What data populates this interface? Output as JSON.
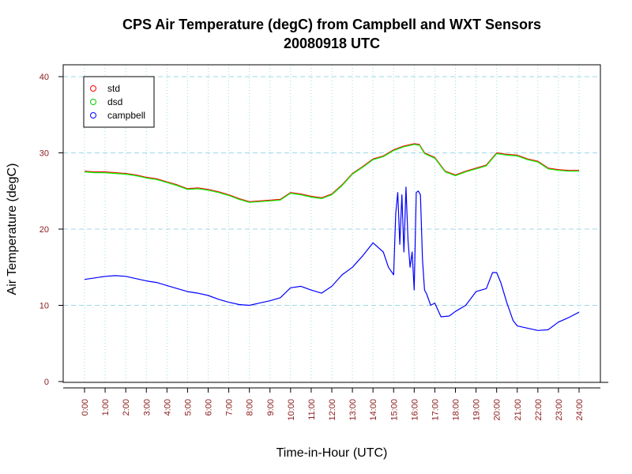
{
  "chart_data": {
    "type": "line",
    "title": "CPS Air Temperature (degC) from Campbell and WXT Sensors",
    "subtitle": "20080918  UTC",
    "xlabel": "Time-in-Hour (UTC)",
    "ylabel": "Air Temperature (degC)",
    "xlim": [
      0,
      24
    ],
    "ylim": [
      0,
      40
    ],
    "yticks": [
      0,
      10,
      20,
      30,
      40
    ],
    "xtick_labels": [
      "0:00",
      "1:00",
      "2:00",
      "3:00",
      "4:00",
      "5:00",
      "6:00",
      "7:00",
      "8:00",
      "9:00",
      "10:00",
      "11:00",
      "12:00",
      "13:00",
      "14:00",
      "15:00",
      "16:00",
      "17:00",
      "18:00",
      "19:00",
      "20:00",
      "21:00",
      "22:00",
      "23:00",
      "24:00"
    ],
    "grid": true,
    "legend": {
      "position": "top-left",
      "entries": [
        "std",
        "dsd",
        "campbell"
      ]
    },
    "series": [
      {
        "name": "std",
        "color": "#ff0000",
        "x": [
          0,
          0.5,
          1,
          1.5,
          2,
          2.5,
          3,
          3.5,
          4,
          4.5,
          5,
          5.5,
          6,
          6.5,
          7,
          7.5,
          8,
          8.5,
          9,
          9.5,
          10,
          10.5,
          11,
          11.5,
          12,
          12.5,
          13,
          13.5,
          14,
          14.5,
          15,
          15.5,
          16,
          16.25,
          16.5,
          16.75,
          17,
          17.5,
          18,
          18.5,
          19,
          19.5,
          20,
          20.5,
          21,
          21.5,
          22,
          22.5,
          23,
          23.5,
          24
        ],
        "values": [
          27.6,
          27.5,
          27.5,
          27.4,
          27.3,
          27.1,
          26.8,
          26.6,
          26.2,
          25.8,
          25.3,
          25.4,
          25.2,
          24.9,
          24.5,
          24.0,
          23.6,
          23.7,
          23.8,
          23.9,
          24.8,
          24.6,
          24.3,
          24.1,
          24.6,
          25.8,
          27.3,
          28.2,
          29.2,
          29.6,
          30.4,
          30.9,
          31.2,
          31.1,
          30.0,
          29.7,
          29.4,
          27.6,
          27.1,
          27.6,
          28.0,
          28.4,
          30.0,
          29.8,
          29.7,
          29.2,
          28.9,
          28.0,
          27.8,
          27.7,
          27.7
        ]
      },
      {
        "name": "dsd",
        "color": "#00ff00",
        "x": [
          0,
          0.5,
          1,
          1.5,
          2,
          2.5,
          3,
          3.5,
          4,
          4.5,
          5,
          5.5,
          6,
          6.5,
          7,
          7.5,
          8,
          8.5,
          9,
          9.5,
          10,
          10.5,
          11,
          11.5,
          12,
          12.5,
          13,
          13.5,
          14,
          14.5,
          15,
          15.5,
          16,
          16.25,
          16.5,
          16.75,
          17,
          17.5,
          18,
          18.5,
          19,
          19.5,
          20,
          20.5,
          21,
          21.5,
          22,
          22.5,
          23,
          23.5,
          24
        ],
        "values": [
          27.5,
          27.4,
          27.4,
          27.3,
          27.2,
          27.0,
          26.7,
          26.5,
          26.1,
          25.7,
          25.2,
          25.3,
          25.1,
          24.8,
          24.4,
          23.9,
          23.5,
          23.6,
          23.7,
          23.8,
          24.7,
          24.5,
          24.2,
          24.0,
          24.5,
          25.7,
          27.2,
          28.1,
          29.1,
          29.5,
          30.3,
          30.8,
          31.1,
          31.0,
          29.9,
          29.6,
          29.3,
          27.5,
          27.0,
          27.5,
          27.9,
          28.3,
          29.9,
          29.7,
          29.6,
          29.1,
          28.8,
          27.9,
          27.7,
          27.6,
          27.6
        ]
      },
      {
        "name": "campbell",
        "color": "#0000ff",
        "x": [
          0,
          0.5,
          1,
          1.5,
          2,
          2.5,
          3,
          3.5,
          4,
          4.5,
          5,
          5.5,
          6,
          6.5,
          7,
          7.5,
          8,
          8.5,
          9,
          9.5,
          10,
          10.5,
          11,
          11.5,
          12,
          12.5,
          13,
          13.5,
          14,
          14.5,
          14.75,
          15,
          15.1,
          15.2,
          15.3,
          15.4,
          15.5,
          15.6,
          15.7,
          15.8,
          15.9,
          16,
          16.1,
          16.2,
          16.3,
          16.4,
          16.5,
          16.6,
          16.8,
          17,
          17.3,
          17.7,
          18,
          18.5,
          19,
          19.5,
          19.8,
          20,
          20.2,
          20.5,
          20.8,
          21,
          21.5,
          22,
          22.5,
          23,
          23.5,
          24
        ],
        "values": [
          13.4,
          13.6,
          13.8,
          13.9,
          13.8,
          13.5,
          13.2,
          13.0,
          12.6,
          12.2,
          11.8,
          11.6,
          11.3,
          10.8,
          10.4,
          10.1,
          10.0,
          10.3,
          10.6,
          11.0,
          12.3,
          12.5,
          12.0,
          11.6,
          12.5,
          14.0,
          15.0,
          16.5,
          18.2,
          17.0,
          15.0,
          14.0,
          22.0,
          24.8,
          18.0,
          24.5,
          17.0,
          25.5,
          18.5,
          15.0,
          17.0,
          12.0,
          24.8,
          25.0,
          24.5,
          16.0,
          12.0,
          11.5,
          10.0,
          10.3,
          8.5,
          8.6,
          9.2,
          10.0,
          11.8,
          12.2,
          14.3,
          14.3,
          13.0,
          10.3,
          8.0,
          7.3,
          7.0,
          6.7,
          6.8,
          7.8,
          8.4,
          9.1
        ]
      }
    ]
  }
}
